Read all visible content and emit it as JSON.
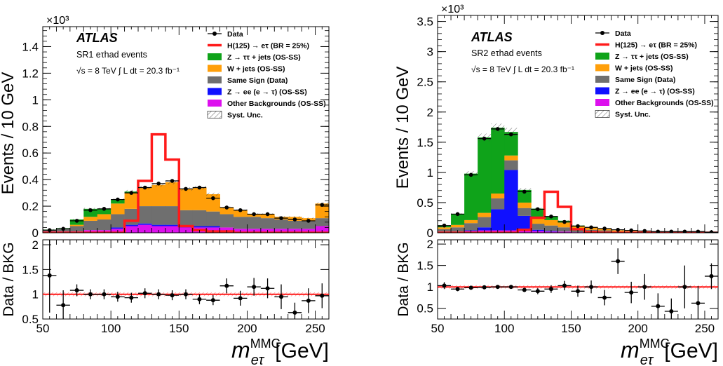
{
  "legend": {
    "data": "Data",
    "signal": "H(125) → eτ (BR = 25%)",
    "ztt": "Z → ττ + jets (OS-SS)",
    "wjets": "W + jets (OS-SS)",
    "ss": "Same Sign (Data)",
    "zee": "Z → ee (e → τ) (OS-SS)",
    "other": "Other Backgrounds (OS-SS)",
    "syst": "Syst. Unc."
  },
  "colors": {
    "ztt": "#0fa31a",
    "wjets": "#ff9f0a",
    "ss": "#6f6f6f",
    "zee": "#1010ff",
    "other": "#dd10ee",
    "signal": "#ff1a1a",
    "data": "#000000",
    "ratio_line": "#ff1a1a"
  },
  "chart_data": [
    {
      "type": "bar",
      "panel": "left",
      "atlas_label": "ATLAS",
      "region_label": "SR1 eτhad events",
      "energy_label": "√s = 8 TeV  ∫ L dt = 20.3 fb⁻¹",
      "exponent_label": "×10³",
      "ylabel": "Events / 10 GeV",
      "ratio_ylabel": "Data / BKG",
      "xlabel": "m eτ MMC [GeV]",
      "xlim": [
        50,
        260
      ],
      "ylim": [
        0,
        1.55
      ],
      "ratio_ylim": [
        0.5,
        2.1
      ],
      "x_ticks": [
        50,
        100,
        150,
        200,
        250
      ],
      "y_ticks": [
        0,
        0.2,
        0.4,
        0.6,
        0.8,
        1,
        1.2,
        1.4
      ],
      "ratio_ticks": [
        0.5,
        1,
        1.5,
        2
      ],
      "bin_edges": [
        50,
        60,
        70,
        80,
        90,
        100,
        110,
        120,
        130,
        140,
        150,
        160,
        170,
        180,
        190,
        200,
        210,
        220,
        230,
        240,
        250,
        260
      ],
      "stack": {
        "other": [
          0.01,
          0.01,
          0.01,
          0.02,
          0.02,
          0.03,
          0.05,
          0.06,
          0.05,
          0.05,
          0.04,
          0.04,
          0.04,
          0.04,
          0.03,
          0.03,
          0.03,
          0.03,
          0.03,
          0.03,
          0.05
        ],
        "zee": [
          0,
          0,
          0,
          0,
          0,
          0.01,
          0.01,
          0.01,
          0.01,
          0.01,
          0.01,
          0.01,
          0.01,
          0,
          0,
          0,
          0,
          0,
          0,
          0,
          0
        ],
        "ss": [
          0.01,
          0.02,
          0.04,
          0.07,
          0.08,
          0.1,
          0.12,
          0.13,
          0.14,
          0.14,
          0.12,
          0.12,
          0.11,
          0.1,
          0.09,
          0.09,
          0.08,
          0.07,
          0.06,
          0.06,
          0.06
        ],
        "wjets": [
          0,
          0,
          0.01,
          0.03,
          0.04,
          0.08,
          0.12,
          0.14,
          0.16,
          0.18,
          0.16,
          0.17,
          0.13,
          0.05,
          0.05,
          0.02,
          0.03,
          0.02,
          0.03,
          0.02,
          0.11
        ],
        "ztt": [
          0.004,
          0.005,
          0.04,
          0.06,
          0.04,
          0.03,
          0.01,
          0,
          0,
          0,
          0,
          0,
          0,
          0,
          0,
          0,
          0,
          0,
          0,
          0,
          0
        ]
      },
      "signal": [
        0,
        0,
        0,
        0,
        0,
        0,
        0.09,
        0.39,
        0.74,
        0.55,
        0.05,
        0.02,
        0.01,
        0.01,
        0,
        0,
        0,
        0,
        0,
        0,
        0
      ],
      "data_x": [
        55,
        65,
        75,
        85,
        95,
        105,
        115,
        125,
        135,
        145,
        155,
        165,
        175,
        185,
        195,
        205,
        215,
        225,
        235,
        245,
        255
      ],
      "data_y": [
        0.02,
        0.03,
        0.09,
        0.17,
        0.18,
        0.25,
        0.3,
        0.34,
        0.37,
        0.39,
        0.33,
        0.34,
        0.26,
        0.19,
        0.17,
        0.14,
        0.14,
        0.11,
        0.1,
        0.09,
        0.21
      ],
      "ratio_x": [
        55,
        65,
        75,
        85,
        95,
        105,
        115,
        125,
        135,
        145,
        155,
        165,
        175,
        185,
        195,
        205,
        215,
        225,
        235,
        245,
        255
      ],
      "ratio_y": [
        1.38,
        0.78,
        1.08,
        1.0,
        1.0,
        0.95,
        0.93,
        1.02,
        1.0,
        0.98,
        1.0,
        0.9,
        0.88,
        1.17,
        0.92,
        1.15,
        1.12,
        0.95,
        0.63,
        0.87,
        0.97
      ],
      "ratio_err": [
        0.75,
        0.3,
        0.12,
        0.1,
        0.1,
        0.1,
        0.1,
        0.1,
        0.1,
        0.1,
        0.1,
        0.1,
        0.1,
        0.15,
        0.15,
        0.18,
        0.2,
        0.25,
        0.2,
        0.25,
        0.25
      ]
    },
    {
      "type": "bar",
      "panel": "right",
      "atlas_label": "ATLAS",
      "region_label": "SR2 eτhad events",
      "energy_label": "√s = 8 TeV  ∫ L dt = 20.3 fb⁻¹",
      "exponent_label": "×10³",
      "ylabel": "Events / 10 GeV",
      "ratio_ylabel": "Data / BKG",
      "xlabel": "m eτ MMC [GeV]",
      "xlim": [
        50,
        260
      ],
      "ylim": [
        0,
        3.6
      ],
      "ratio_ylim": [
        0.25,
        2.1
      ],
      "x_ticks": [
        50,
        100,
        150,
        200,
        250
      ],
      "y_ticks": [
        0,
        0.5,
        1,
        1.5,
        2,
        2.5,
        3,
        3.5
      ],
      "ratio_ticks": [
        0.5,
        1,
        1.5,
        2
      ],
      "bin_edges": [
        50,
        60,
        70,
        80,
        90,
        100,
        110,
        120,
        130,
        140,
        150,
        160,
        170,
        180,
        190,
        200,
        210,
        220,
        230,
        240,
        250,
        260
      ],
      "stack": {
        "other": [
          0.02,
          0.02,
          0.03,
          0.04,
          0.04,
          0.04,
          0.03,
          0.03,
          0.02,
          0.02,
          0.01,
          0.01,
          0.01,
          0,
          0,
          0,
          0,
          0,
          0,
          0,
          0
        ],
        "zee": [
          0,
          0,
          0.01,
          0.05,
          0.35,
          1.0,
          0.25,
          0.02,
          0.01,
          0,
          0,
          0,
          0,
          0,
          0,
          0,
          0,
          0,
          0,
          0,
          0
        ],
        "ss": [
          0.04,
          0.07,
          0.12,
          0.17,
          0.18,
          0.16,
          0.13,
          0.1,
          0.09,
          0.07,
          0.05,
          0.04,
          0.03,
          0.02,
          0.02,
          0.01,
          0.01,
          0.01,
          0.01,
          0.01,
          0.01
        ],
        "wjets": [
          0.03,
          0.04,
          0.05,
          0.07,
          0.08,
          0.08,
          0.09,
          0.09,
          0.09,
          0.08,
          0.05,
          0.04,
          0.03,
          0.02,
          0.01,
          0.01,
          0.01,
          0.01,
          0,
          0,
          0
        ],
        "ztt": [
          0.03,
          0.18,
          0.77,
          1.25,
          1.09,
          0.39,
          0.21,
          0.16,
          0.06,
          0.03,
          0.01,
          0,
          0,
          0,
          0,
          0,
          0,
          0,
          0,
          0,
          0
        ]
      },
      "signal": [
        0,
        0,
        0,
        0,
        0,
        0,
        0.05,
        0.25,
        0.68,
        0.43,
        0.06,
        0.01,
        0,
        0,
        0,
        0,
        0,
        0,
        0,
        0,
        0
      ],
      "data_x": [
        55,
        65,
        75,
        85,
        95,
        105,
        115,
        125,
        135,
        145,
        155,
        165,
        175,
        185,
        195,
        205,
        215,
        225,
        235,
        245,
        255
      ],
      "data_y": [
        0.12,
        0.31,
        0.96,
        1.56,
        1.72,
        1.63,
        0.68,
        0.39,
        0.27,
        0.18,
        0.11,
        0.09,
        0.07,
        0.05,
        0.04,
        0.03,
        0.02,
        0.02,
        0.02,
        0.02,
        0.01
      ],
      "ratio_x": [
        55,
        65,
        75,
        85,
        95,
        105,
        115,
        125,
        135,
        145,
        155,
        165,
        175,
        185,
        195,
        205,
        215,
        225,
        235,
        245,
        255
      ],
      "ratio_y": [
        1.03,
        0.95,
        0.98,
        0.99,
        1.0,
        1.0,
        0.93,
        0.9,
        0.95,
        1.03,
        0.9,
        1.0,
        0.75,
        1.6,
        0.87,
        1.0,
        0.55,
        0.43,
        1.0,
        0.62,
        1.25
      ],
      "ratio_err": [
        0.08,
        0.05,
        0.03,
        0.03,
        0.03,
        0.03,
        0.05,
        0.07,
        0.09,
        0.11,
        0.13,
        0.15,
        0.18,
        0.3,
        0.25,
        0.3,
        0.3,
        0.3,
        0.5,
        0.4,
        0.3
      ]
    }
  ]
}
